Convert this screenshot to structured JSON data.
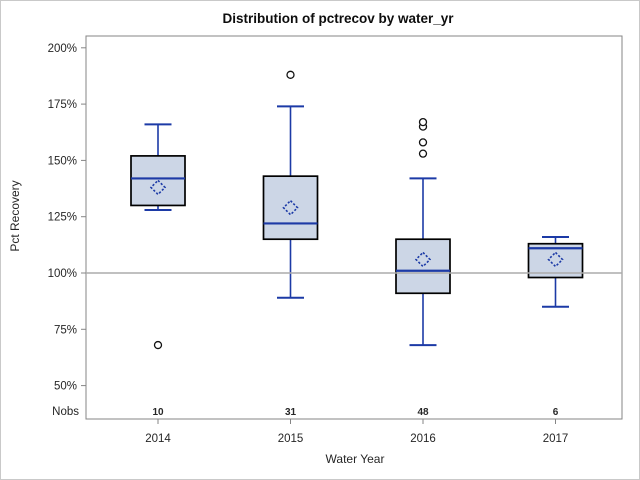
{
  "window": {
    "title": "Distribution of pctrecov by water_yr"
  },
  "chart_data": {
    "type": "boxplot",
    "title": "Distribution of pctrecov by water_yr",
    "xlabel": "Water Year",
    "ylabel": "Pct Recovery",
    "nobs_row_label": "Nobs",
    "y_ticks": [
      200,
      175,
      150,
      125,
      100,
      75,
      50
    ],
    "y_tick_suffix": "%",
    "ylim": [
      50,
      200
    ],
    "reference_line": 100,
    "grid": "off",
    "legend": "none",
    "categories": [
      "2014",
      "2015",
      "2016",
      "2017"
    ],
    "nobs": [
      10,
      31,
      48,
      6
    ],
    "series": [
      {
        "category": "2014",
        "nobs": 10,
        "whisker_low": 128,
        "q1": 130,
        "median": 142,
        "q3": 152,
        "whisker_high": 166,
        "mean": 138,
        "outliers": [
          68
        ]
      },
      {
        "category": "2015",
        "nobs": 31,
        "whisker_low": 89,
        "q1": 115,
        "median": 122,
        "q3": 143,
        "whisker_high": 174,
        "mean": 129,
        "outliers": [
          188
        ]
      },
      {
        "category": "2016",
        "nobs": 48,
        "whisker_low": 68,
        "q1": 91,
        "median": 101,
        "q3": 115,
        "whisker_high": 142,
        "mean": 106,
        "outliers": [
          153,
          158,
          165,
          167
        ]
      },
      {
        "category": "2017",
        "nobs": 6,
        "whisker_low": 85,
        "q1": 98,
        "median": 111,
        "q3": 113,
        "whisker_high": 116,
        "mean": 106,
        "outliers": []
      }
    ]
  },
  "colors": {
    "box_fill": "#ccd6e6",
    "box_border": "#000000",
    "whisker_median_mean": "#1c3aa6",
    "reference_line": "#ababab",
    "axis_frame": "#858585",
    "outlier_stroke": "#111111",
    "text": "#262626",
    "page_border": "#c9c9c9",
    "background": "#ffffff"
  }
}
